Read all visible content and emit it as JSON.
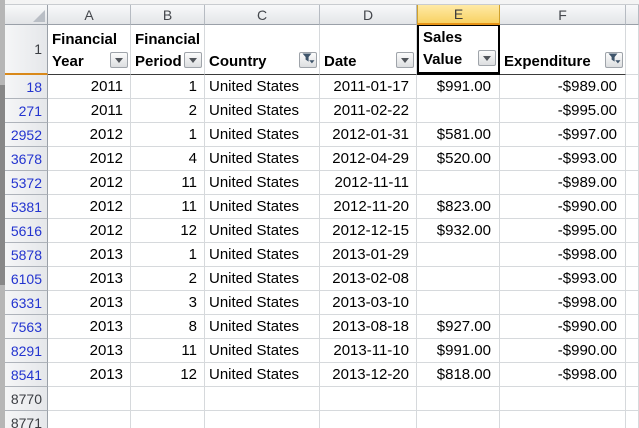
{
  "sheet": {
    "column_letters": [
      "A",
      "B",
      "C",
      "D",
      "E",
      "F"
    ],
    "selected_column": "E",
    "selected_cell": "E1",
    "header_row_number": "1",
    "headers": [
      {
        "col": "A",
        "line1": "Financial",
        "line2": "Year",
        "button": "dropdown",
        "selected": false
      },
      {
        "col": "B",
        "line1": "Financial",
        "line2": "Period",
        "button": "dropdown",
        "selected": false
      },
      {
        "col": "C",
        "line1": "",
        "line2": "Country",
        "button": "filter",
        "selected": false
      },
      {
        "col": "D",
        "line1": "",
        "line2": "Date",
        "button": "dropdown",
        "selected": false
      },
      {
        "col": "E",
        "line1": "Sales",
        "line2": "Value",
        "button": "dropdown",
        "selected": true
      },
      {
        "col": "F",
        "line1": "",
        "line2": "Expenditure",
        "button": "filter",
        "selected": false
      }
    ],
    "rows": [
      {
        "num": "18",
        "filtered": true,
        "year": "2011",
        "period": "1",
        "country": "United States",
        "date": "2011-01-17",
        "sales": "$991.00",
        "expenditure": "-$989.00"
      },
      {
        "num": "271",
        "filtered": true,
        "year": "2011",
        "period": "2",
        "country": "United States",
        "date": "2011-02-22",
        "sales": "",
        "expenditure": "-$995.00"
      },
      {
        "num": "2952",
        "filtered": true,
        "year": "2012",
        "period": "1",
        "country": "United States",
        "date": "2012-01-31",
        "sales": "$581.00",
        "expenditure": "-$997.00"
      },
      {
        "num": "3678",
        "filtered": true,
        "year": "2012",
        "period": "4",
        "country": "United States",
        "date": "2012-04-29",
        "sales": "$520.00",
        "expenditure": "-$993.00"
      },
      {
        "num": "5372",
        "filtered": true,
        "year": "2012",
        "period": "11",
        "country": "United States",
        "date": "2012-11-11",
        "sales": "",
        "expenditure": "-$989.00"
      },
      {
        "num": "5381",
        "filtered": true,
        "year": "2012",
        "period": "11",
        "country": "United States",
        "date": "2012-11-20",
        "sales": "$823.00",
        "expenditure": "-$990.00"
      },
      {
        "num": "5616",
        "filtered": true,
        "year": "2012",
        "period": "12",
        "country": "United States",
        "date": "2012-12-15",
        "sales": "$932.00",
        "expenditure": "-$995.00"
      },
      {
        "num": "5878",
        "filtered": true,
        "year": "2013",
        "period": "1",
        "country": "United States",
        "date": "2013-01-29",
        "sales": "",
        "expenditure": "-$998.00"
      },
      {
        "num": "6105",
        "filtered": true,
        "year": "2013",
        "period": "2",
        "country": "United States",
        "date": "2013-02-08",
        "sales": "",
        "expenditure": "-$993.00"
      },
      {
        "num": "6331",
        "filtered": true,
        "year": "2013",
        "period": "3",
        "country": "United States",
        "date": "2013-03-10",
        "sales": "",
        "expenditure": "-$998.00"
      },
      {
        "num": "7563",
        "filtered": true,
        "year": "2013",
        "period": "8",
        "country": "United States",
        "date": "2013-08-18",
        "sales": "$927.00",
        "expenditure": "-$990.00"
      },
      {
        "num": "8291",
        "filtered": true,
        "year": "2013",
        "period": "11",
        "country": "United States",
        "date": "2013-11-10",
        "sales": "$991.00",
        "expenditure": "-$990.00"
      },
      {
        "num": "8541",
        "filtered": true,
        "year": "2013",
        "period": "12",
        "country": "United States",
        "date": "2013-12-20",
        "sales": "$818.00",
        "expenditure": "-$998.00"
      },
      {
        "num": "8770",
        "filtered": false,
        "year": "",
        "period": "",
        "country": "",
        "date": "",
        "sales": "",
        "expenditure": ""
      },
      {
        "num": "8771",
        "filtered": false,
        "year": "",
        "period": "",
        "country": "",
        "date": "",
        "sales": "",
        "expenditure": ""
      }
    ],
    "icons": {
      "dropdown": "chevron-down-icon",
      "filter": "funnel-filter-icon"
    },
    "colors": {
      "selected_column_fill": "#F8D264",
      "selection_accent": "#E79417",
      "filtered_row_number_text": "#2334CF",
      "grid_line": "#D6D9DC",
      "funnel_icon": "#3F556B"
    }
  }
}
